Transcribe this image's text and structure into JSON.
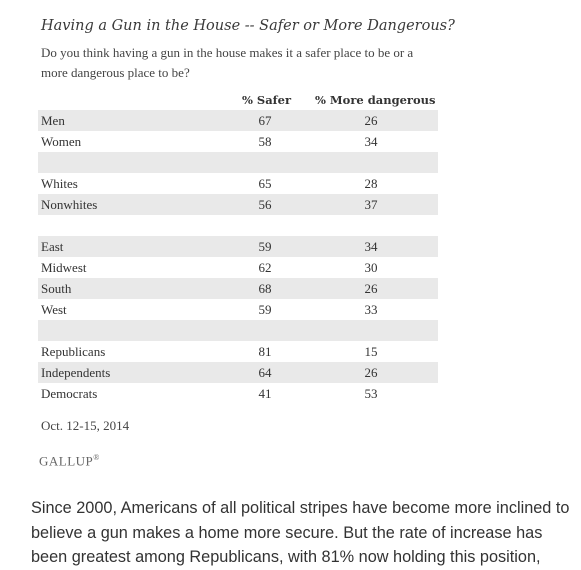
{
  "chart_data": {
    "type": "table",
    "title": "Having a Gun in the House -- Safer or More Dangerous?",
    "subtitle": "Do you think having a gun in the house makes it a safer place to be or a more dangerous place to be?",
    "columns": [
      "% Safer",
      "% More dangerous"
    ],
    "rows": [
      {
        "label": "Men",
        "values": [
          "67",
          "26"
        ],
        "shade": true
      },
      {
        "label": "Women",
        "values": [
          "58",
          "34"
        ],
        "shade": false
      },
      {
        "label": "",
        "values": [
          "",
          ""
        ],
        "shade": true
      },
      {
        "label": "Whites",
        "values": [
          "65",
          "28"
        ],
        "shade": false
      },
      {
        "label": "Nonwhites",
        "values": [
          "56",
          "37"
        ],
        "shade": true
      },
      {
        "label": "",
        "values": [
          "",
          ""
        ],
        "shade": false
      },
      {
        "label": "East",
        "values": [
          "59",
          "34"
        ],
        "shade": true
      },
      {
        "label": "Midwest",
        "values": [
          "62",
          "30"
        ],
        "shade": false
      },
      {
        "label": "South",
        "values": [
          "68",
          "26"
        ],
        "shade": true
      },
      {
        "label": "West",
        "values": [
          "59",
          "33"
        ],
        "shade": false
      },
      {
        "label": "",
        "values": [
          "",
          ""
        ],
        "shade": true
      },
      {
        "label": "Republicans",
        "values": [
          "81",
          "15"
        ],
        "shade": false
      },
      {
        "label": "Independents",
        "values": [
          "64",
          "26"
        ],
        "shade": true
      },
      {
        "label": "Democrats",
        "values": [
          "41",
          "53"
        ],
        "shade": false
      }
    ],
    "date": "Oct. 12-15, 2014",
    "source": "GALLUP",
    "source_mark": "®"
  },
  "colors": {
    "shade": "#e9e9e9",
    "text": "#333333"
  },
  "article_text": "Since 2000, Americans of all political stripes have become more inclined to believe a gun makes a home more secure. But the rate of increase has been greatest among Republicans, with 81% now holding this position,"
}
